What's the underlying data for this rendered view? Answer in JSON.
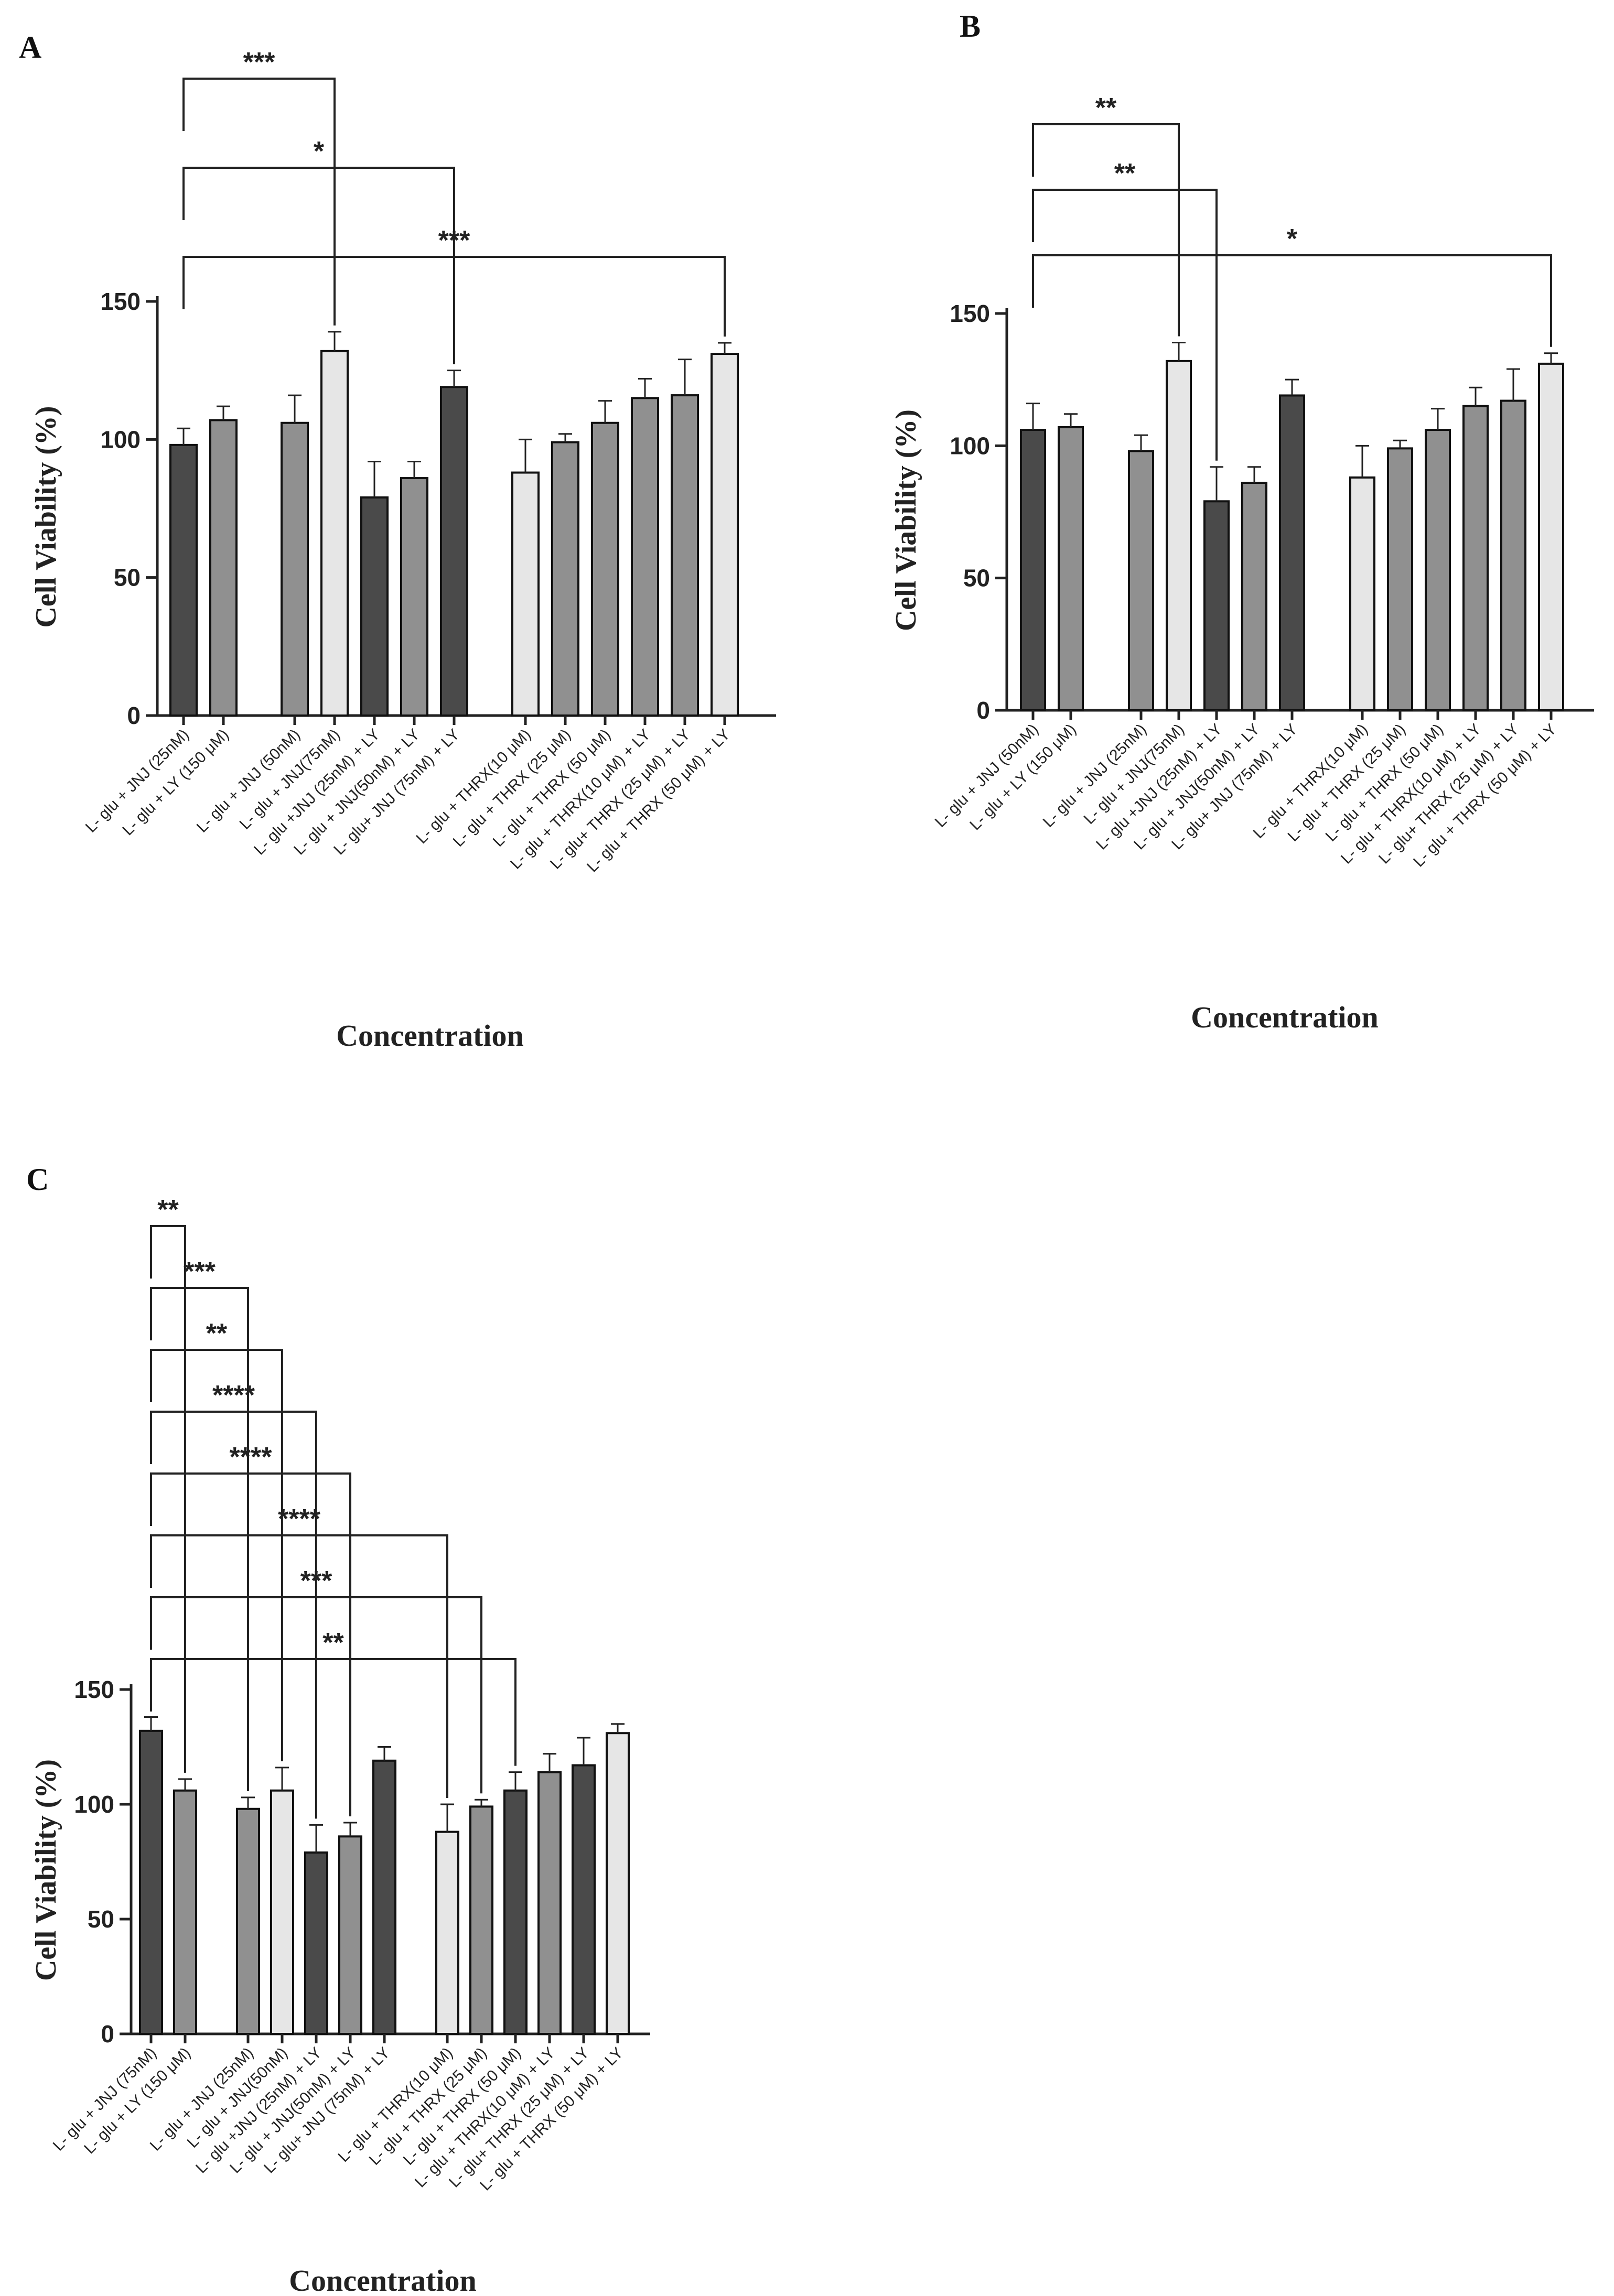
{
  "colors": {
    "dark": "#4a4a4a",
    "mid": "#909090",
    "light": "#e6e6e6",
    "axis": "#222222"
  },
  "chart_data": [
    {
      "panel": "A",
      "type": "bar",
      "title": "A",
      "xlabel": "Concentration",
      "ylabel": "Cell Viability (%)",
      "ylim": [
        0,
        150
      ],
      "yticks": [
        "0",
        "50",
        "100",
        "150"
      ],
      "categories": [
        "L- glu + JNJ (25nM)",
        "L- glu + LY (150 μM)",
        "L- glu + JNJ (50nM)",
        "L- glu + JNJ(75nM)",
        "L- glu +JNJ (25nM) + LY",
        "L- glu + JNJ(50nM) + LY",
        "L- glu+ JNJ (75nM) + LY",
        "L- glu + THRX(10 μM)",
        "L- glu + THRX (25 μM)",
        "L- glu + THRX (50 μM)",
        "L- glu + THRX(10 μM) + LY",
        "L- glu+ THRX (25 μM) + LY",
        "L- glu + THRX (50 μM) + LY"
      ],
      "values": [
        98,
        107,
        106,
        132,
        79,
        86,
        119,
        88,
        99,
        106,
        115,
        116,
        131
      ],
      "errors": [
        6,
        5,
        10,
        7,
        13,
        6,
        6,
        12,
        3,
        8,
        7,
        13,
        4
      ],
      "shades": [
        "dark",
        "mid",
        "mid",
        "light",
        "dark",
        "mid",
        "dark",
        "light",
        "mid",
        "mid",
        "mid",
        "mid",
        "light"
      ],
      "groups": [
        0,
        0,
        1,
        1,
        1,
        1,
        1,
        2,
        2,
        2,
        2,
        2,
        2
      ],
      "significance": [
        {
          "from": 0,
          "to": 3,
          "label": "***"
        },
        {
          "from": 0,
          "to": 6,
          "label": "*"
        },
        {
          "from": 0,
          "to": 12,
          "label": "***"
        }
      ]
    },
    {
      "panel": "B",
      "type": "bar",
      "title": "B",
      "xlabel": "Concentration",
      "ylabel": "Cell Viability (%)",
      "ylim": [
        0,
        150
      ],
      "yticks": [
        "0",
        "50",
        "100",
        "150"
      ],
      "categories": [
        "L- glu + JNJ (50nM)",
        "L- glu + LY (150 μM)",
        "L- glu + JNJ (25nM)",
        "L- glu + JNJ(75nM)",
        "L- glu +JNJ (25nM) + LY",
        "L- glu + JNJ(50nM) + LY",
        "L- glu+ JNJ (75nM) + LY",
        "L- glu + THRX(10 μM)",
        "L- glu + THRX (25 μM)",
        "L- glu + THRX (50 μM)",
        "L- glu + THRX(10 μM) + LY",
        "L- glu+ THRX (25 μM) + LY",
        "L- glu + THRX (50 μM) + LY"
      ],
      "values": [
        106,
        107,
        98,
        132,
        79,
        86,
        119,
        88,
        99,
        106,
        115,
        117,
        131
      ],
      "errors": [
        10,
        5,
        6,
        7,
        13,
        6,
        6,
        12,
        3,
        8,
        7,
        12,
        4
      ],
      "shades": [
        "dark",
        "mid",
        "mid",
        "light",
        "dark",
        "mid",
        "dark",
        "light",
        "mid",
        "mid",
        "mid",
        "mid",
        "light"
      ],
      "groups": [
        0,
        0,
        1,
        1,
        1,
        1,
        1,
        2,
        2,
        2,
        2,
        2,
        2
      ],
      "significance": [
        {
          "from": 0,
          "to": 3,
          "label": "**"
        },
        {
          "from": 0,
          "to": 4,
          "label": "**"
        },
        {
          "from": 0,
          "to": 12,
          "label": "*"
        }
      ]
    },
    {
      "panel": "C",
      "type": "bar",
      "title": "C",
      "xlabel": "Concentration",
      "ylabel": "Cell Viability (%)",
      "ylim": [
        0,
        150
      ],
      "yticks": [
        "0",
        "50",
        "100",
        "150"
      ],
      "categories": [
        "L- glu + JNJ (75nM)",
        "L- glu + LY (150 μM)",
        "L- glu + JNJ (25nM)",
        "L- glu + JNJ(50nM)",
        "L- glu +JNJ (25nM) + LY",
        "L- glu + JNJ(50nM) + LY",
        "L- glu+ JNJ (75nM) + LY",
        "L- glu + THRX(10 μM)",
        "L- glu + THRX (25 μM)",
        "L- glu + THRX (50 μM)",
        "L- glu + THRX(10 μM) + LY",
        "L- glu+ THRX (25 μM) + LY",
        "L- glu + THRX (50 μM) + LY"
      ],
      "values": [
        132,
        106,
        98,
        106,
        79,
        86,
        119,
        88,
        99,
        106,
        114,
        117,
        131
      ],
      "errors": [
        6,
        5,
        5,
        10,
        12,
        6,
        6,
        12,
        3,
        8,
        8,
        12,
        4
      ],
      "shades": [
        "dark",
        "mid",
        "mid",
        "light",
        "dark",
        "mid",
        "dark",
        "light",
        "mid",
        "dark",
        "mid",
        "dark",
        "light"
      ],
      "groups": [
        0,
        0,
        1,
        1,
        1,
        1,
        1,
        2,
        2,
        2,
        2,
        2,
        2
      ],
      "significance": [
        {
          "from": 0,
          "to": 1,
          "label": "**"
        },
        {
          "from": 0,
          "to": 2,
          "label": "***"
        },
        {
          "from": 0,
          "to": 3,
          "label": "**"
        },
        {
          "from": 0,
          "to": 4,
          "label": "****"
        },
        {
          "from": 0,
          "to": 5,
          "label": "****"
        },
        {
          "from": 0,
          "to": 7,
          "label": "****"
        },
        {
          "from": 0,
          "to": 8,
          "label": "***"
        },
        {
          "from": 0,
          "to": 9,
          "label": "**"
        }
      ]
    }
  ]
}
